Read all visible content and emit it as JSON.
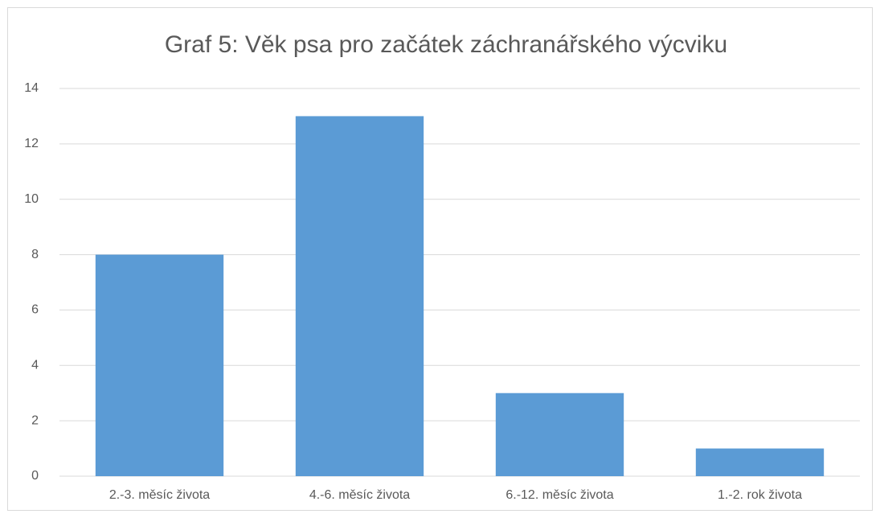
{
  "chart_data": {
    "type": "bar",
    "title": "Graf 5: Věk psa pro začátek záchranářského výcviku",
    "categories": [
      "2.-3. měsíc života",
      "4.-6. měsíc života",
      "6.-12. měsíc života",
      "1.-2. rok života"
    ],
    "values": [
      8,
      13,
      3,
      1
    ],
    "color": "#5b9bd5",
    "ylim": [
      0,
      14
    ],
    "yticks": [
      0,
      2,
      4,
      6,
      8,
      10,
      12,
      14
    ],
    "grid": true
  }
}
